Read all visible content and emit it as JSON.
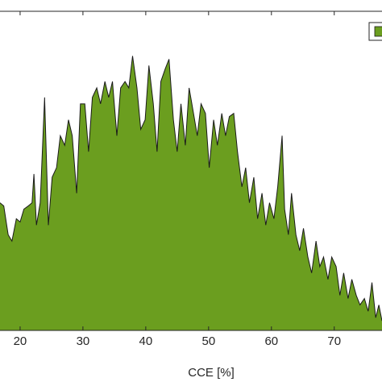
{
  "chart_data": {
    "type": "area",
    "x_label": "CCE [%]",
    "color": "#6b9e1f",
    "line_color": "#1a1a1a",
    "xlim": [
      16.8,
      77.6
    ],
    "xticks": [
      20,
      30,
      40,
      50,
      60,
      70
    ],
    "ylim": [
      0,
      100
    ],
    "legend": "top-right",
    "series": [
      {
        "x": [
          16.8,
          17.4,
          18.1,
          18.7,
          19.4,
          20.0,
          20.6,
          21.3,
          21.9,
          22.2,
          22.6,
          23.2,
          23.9,
          24.5,
          25.1,
          25.8,
          26.4,
          27.1,
          27.7,
          28.3,
          29.0,
          29.6,
          30.3,
          30.9,
          31.5,
          32.2,
          32.8,
          33.5,
          34.1,
          34.7,
          35.4,
          36.0,
          36.7,
          37.3,
          37.9,
          38.6,
          39.2,
          39.9,
          40.5,
          41.2,
          41.8,
          42.4,
          43.1,
          43.7,
          44.4,
          45.0,
          45.6,
          46.3,
          46.9,
          47.6,
          48.2,
          48.8,
          49.5,
          50.1,
          50.8,
          51.4,
          52.1,
          52.7,
          53.3,
          54.0,
          54.6,
          55.3,
          55.9,
          56.5,
          57.2,
          57.8,
          58.5,
          59.1,
          59.7,
          60.4,
          61.0,
          61.7,
          62.1,
          62.7,
          63.2,
          63.9,
          64.5,
          65.1,
          65.8,
          66.4,
          67.1,
          67.7,
          68.3,
          69.0,
          69.6,
          70.3,
          70.9,
          71.5,
          72.2,
          72.8,
          73.5,
          74.1,
          74.8,
          75.4,
          76.0,
          76.6,
          77.1,
          77.6
        ],
        "values": [
          40,
          39,
          30,
          28,
          35,
          34,
          38,
          39,
          40,
          49,
          33,
          40,
          73,
          33,
          48,
          51,
          61,
          58,
          66,
          61,
          43,
          71,
          71,
          56,
          73,
          76,
          71,
          78,
          73,
          78,
          61,
          76,
          78,
          76,
          86,
          76,
          63,
          66,
          83,
          71,
          56,
          78,
          82,
          85,
          66,
          56,
          71,
          58,
          76,
          68,
          61,
          71,
          68,
          51,
          66,
          58,
          68,
          61,
          67,
          68,
          56,
          45,
          51,
          40,
          48,
          35,
          43,
          33,
          40,
          35,
          45,
          61,
          38,
          30,
          43,
          30,
          25,
          32,
          23,
          18,
          28,
          20,
          23,
          16,
          23,
          20,
          11,
          18,
          10,
          16,
          11,
          8,
          10,
          6,
          15,
          4,
          8,
          3
        ]
      }
    ]
  }
}
